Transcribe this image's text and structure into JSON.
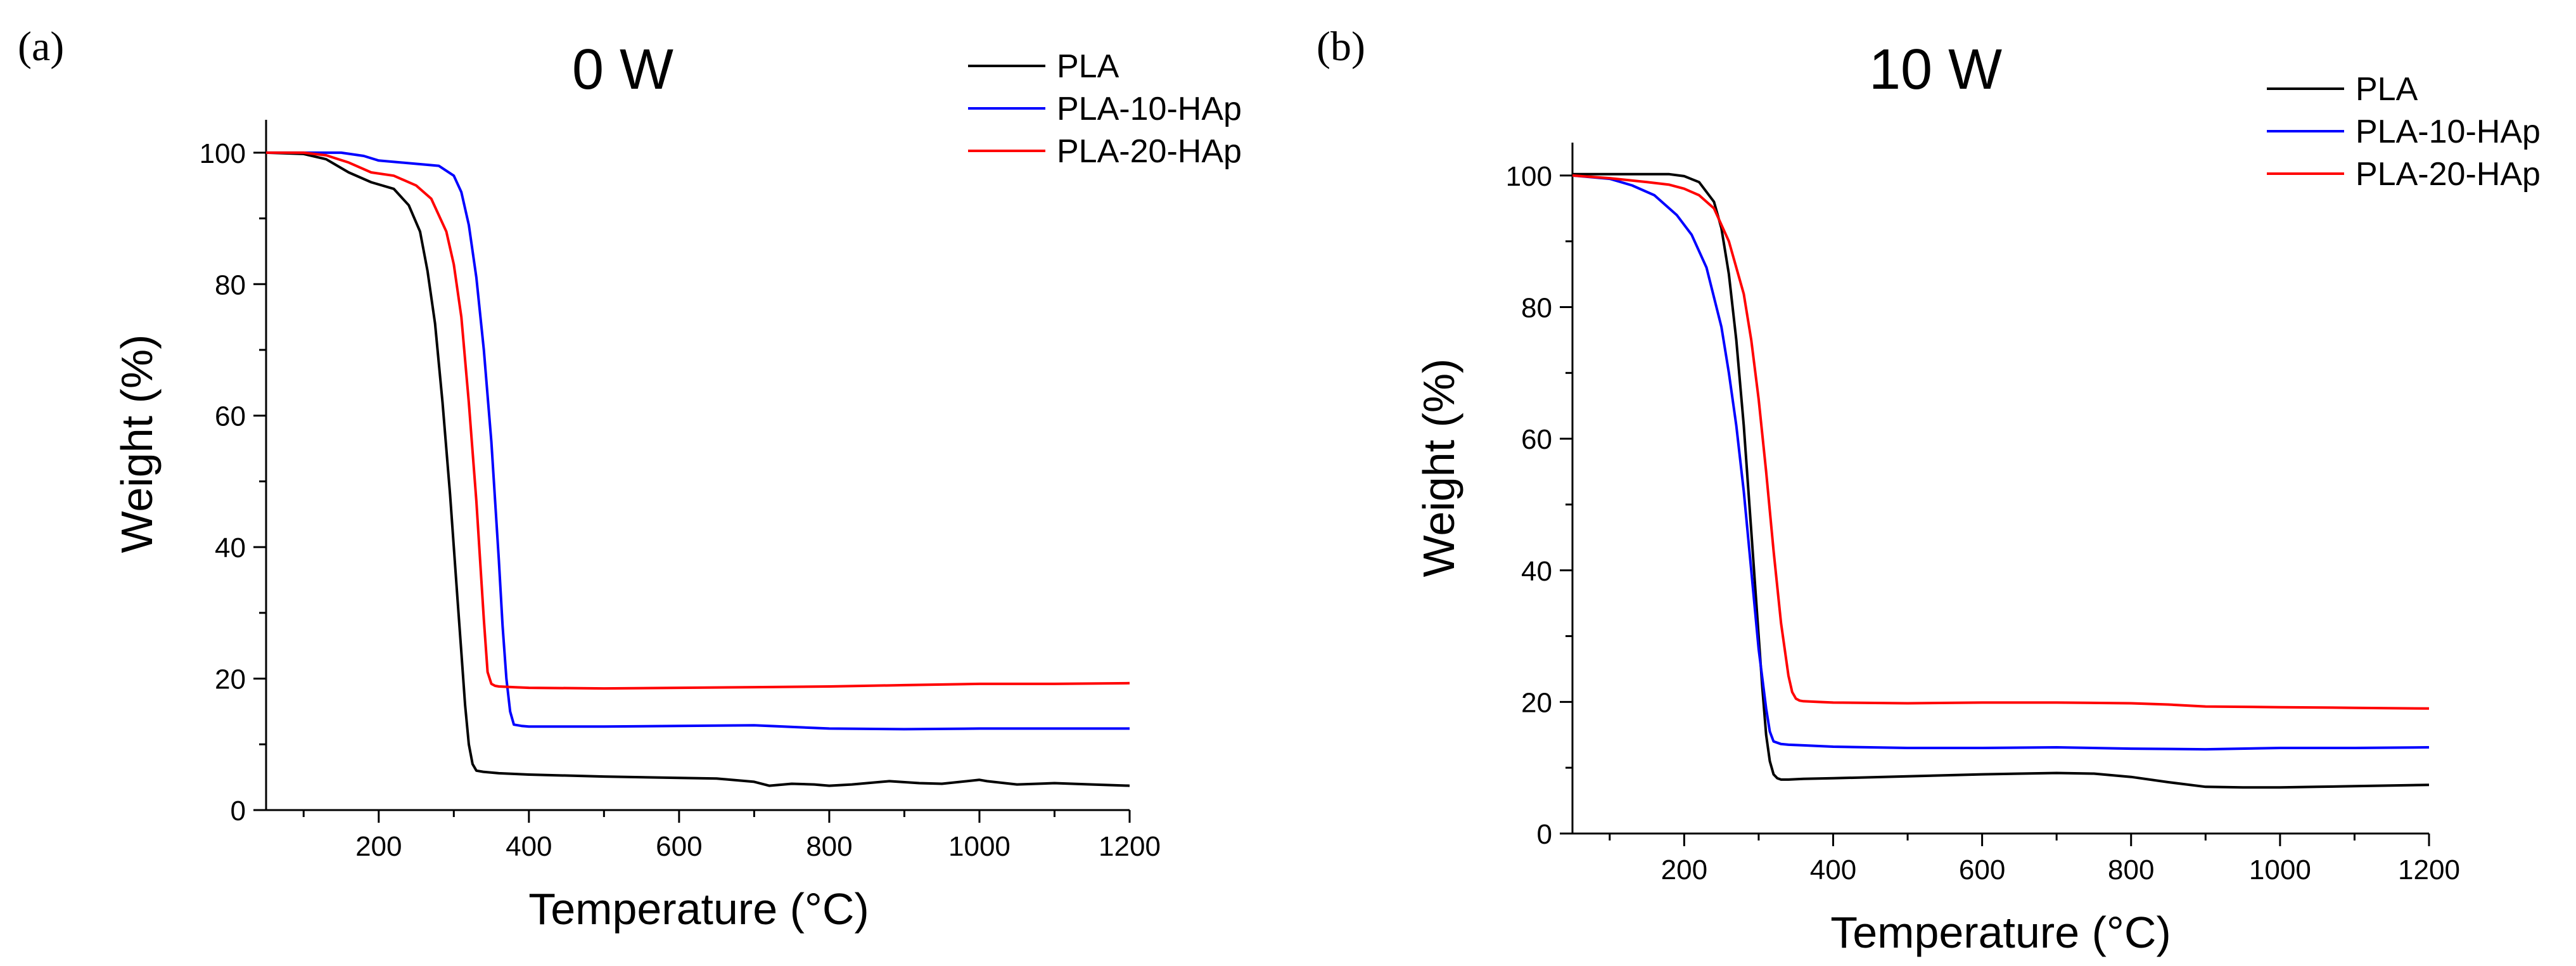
{
  "chart_data": [
    {
      "panel": "(a)",
      "type": "line",
      "title": "0 W",
      "xlabel": "Temperature (°C)",
      "ylabel": "Weight (%)",
      "xlim": [
        50,
        1200
      ],
      "ylim": [
        0,
        105
      ],
      "x_ticks": [
        200,
        400,
        600,
        800,
        1000,
        1200
      ],
      "y_ticks": [
        0,
        20,
        40,
        60,
        80,
        100
      ],
      "legend_position": "top-right",
      "series": [
        {
          "name": "PLA",
          "color": "#000000",
          "x": [
            50,
            100,
            130,
            160,
            190,
            220,
            240,
            255,
            265,
            275,
            285,
            295,
            300,
            305,
            310,
            315,
            320,
            325,
            330,
            340,
            360,
            400,
            500,
            600,
            650,
            700,
            720,
            750,
            780,
            800,
            830,
            880,
            920,
            950,
            1000,
            1010,
            1050,
            1100,
            1150,
            1200
          ],
          "y": [
            100,
            99.8,
            99,
            97,
            95.5,
            94.5,
            92,
            88,
            82,
            74,
            62,
            48,
            40,
            32,
            24,
            16,
            10,
            7,
            6,
            5.8,
            5.6,
            5.4,
            5.1,
            4.9,
            4.8,
            4.3,
            3.7,
            4.0,
            3.9,
            3.7,
            3.9,
            4.4,
            4.1,
            4.0,
            4.6,
            4.4,
            3.9,
            4.1,
            3.9,
            3.7
          ]
        },
        {
          "name": "PLA-10-HAp",
          "color": "#0000ff",
          "x": [
            50,
            100,
            150,
            180,
            200,
            230,
            260,
            280,
            300,
            310,
            320,
            330,
            340,
            350,
            355,
            360,
            365,
            370,
            375,
            380,
            390,
            400,
            500,
            600,
            700,
            800,
            900,
            1000,
            1100,
            1200
          ],
          "y": [
            100,
            100,
            100,
            99.5,
            98.8,
            98.5,
            98.2,
            98,
            96.5,
            94,
            89,
            81,
            70,
            56,
            47,
            38,
            28,
            20,
            15,
            13,
            12.8,
            12.7,
            12.7,
            12.8,
            12.9,
            12.4,
            12.3,
            12.4,
            12.4,
            12.4
          ]
        },
        {
          "name": "PLA-20-HAp",
          "color": "#ff0000",
          "x": [
            50,
            100,
            130,
            160,
            190,
            220,
            250,
            270,
            290,
            300,
            310,
            320,
            330,
            335,
            340,
            345,
            350,
            355,
            360,
            380,
            400,
            500,
            600,
            700,
            800,
            900,
            1000,
            1100,
            1200
          ],
          "y": [
            100,
            100,
            99.6,
            98.5,
            97,
            96.5,
            95,
            93,
            88,
            83,
            75,
            62,
            47,
            38,
            29,
            21,
            19.2,
            18.9,
            18.8,
            18.7,
            18.6,
            18.5,
            18.6,
            18.7,
            18.8,
            19.0,
            19.2,
            19.2,
            19.3
          ]
        }
      ]
    },
    {
      "panel": "(b)",
      "type": "line",
      "title": "10 W",
      "xlabel": "Temperature (°C)",
      "ylabel": "Weight (%)",
      "xlim": [
        50,
        1200
      ],
      "ylim": [
        0,
        105
      ],
      "x_ticks": [
        200,
        400,
        600,
        800,
        1000,
        1200
      ],
      "y_ticks": [
        0,
        20,
        40,
        60,
        80,
        100
      ],
      "legend_position": "top-right",
      "series": [
        {
          "name": "PLA",
          "color": "#000000",
          "x": [
            50,
            100,
            150,
            180,
            200,
            220,
            240,
            250,
            260,
            270,
            280,
            290,
            300,
            305,
            310,
            315,
            320,
            325,
            330,
            340,
            360,
            400,
            500,
            600,
            700,
            750,
            800,
            850,
            900,
            950,
            1000,
            1050,
            1100,
            1150,
            1200
          ],
          "y": [
            100.2,
            100.2,
            100.2,
            100.2,
            99.9,
            99,
            96,
            92,
            85,
            75,
            62,
            46,
            30,
            22,
            15,
            11,
            9,
            8.4,
            8.2,
            8.2,
            8.3,
            8.4,
            8.7,
            9.0,
            9.2,
            9.1,
            8.6,
            7.8,
            7.1,
            7.0,
            7.0,
            7.1,
            7.2,
            7.3,
            7.4
          ]
        },
        {
          "name": "PLA-10-HAp",
          "color": "#0000ff",
          "x": [
            50,
            100,
            130,
            160,
            190,
            210,
            230,
            250,
            260,
            270,
            280,
            290,
            300,
            310,
            315,
            320,
            330,
            340,
            360,
            400,
            500,
            600,
            700,
            800,
            900,
            1000,
            1100,
            1200
          ],
          "y": [
            100,
            99.5,
            98.5,
            97,
            94,
            91,
            86,
            77,
            70,
            62,
            52,
            40,
            28,
            19,
            15.5,
            14,
            13.6,
            13.5,
            13.4,
            13.2,
            13.0,
            13.0,
            13.1,
            12.9,
            12.8,
            13.0,
            13.0,
            13.1
          ]
        },
        {
          "name": "PLA-20-HAp",
          "color": "#ff0000",
          "x": [
            50,
            100,
            150,
            180,
            200,
            220,
            240,
            260,
            280,
            290,
            300,
            310,
            320,
            330,
            340,
            345,
            350,
            355,
            360,
            380,
            400,
            500,
            600,
            700,
            800,
            850,
            900,
            1000,
            1100,
            1200
          ],
          "y": [
            100,
            99.6,
            99,
            98.6,
            98,
            97,
            95,
            90,
            82,
            75,
            66,
            55,
            43,
            32,
            24,
            21.5,
            20.5,
            20.2,
            20.1,
            20.0,
            19.9,
            19.8,
            19.9,
            19.9,
            19.8,
            19.6,
            19.3,
            19.2,
            19.1,
            19.0
          ]
        }
      ]
    }
  ]
}
